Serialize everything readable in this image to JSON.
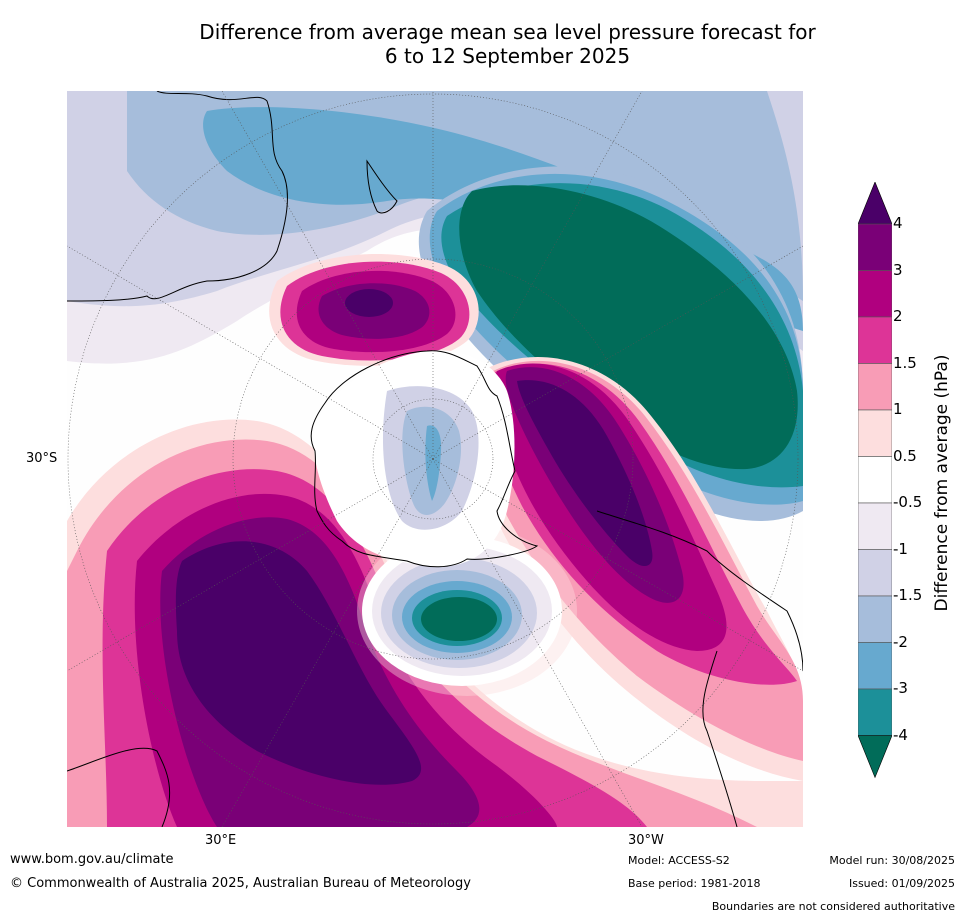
{
  "title": {
    "line1": "Difference from average mean sea level pressure forecast for",
    "line2": "6 to 12 September 2025"
  },
  "axis_labels": {
    "lat_left": "30°S",
    "lon_bottom_left": "30°E",
    "lon_bottom_right": "30°W"
  },
  "colorbar": {
    "title": "Difference from average (hPa)",
    "ticks": [
      "4",
      "3",
      "2",
      "1.5",
      "1",
      "0.5",
      "-0.5",
      "-1",
      "-1.5",
      "-2",
      "-3",
      "-4"
    ],
    "bins": [
      {
        "label": "above 4",
        "color": "#4a0068"
      },
      {
        "label": "3 to 4",
        "color": "#7a0077"
      },
      {
        "label": "2 to 3",
        "color": "#b0007f"
      },
      {
        "label": "1.5 to 2",
        "color": "#dd3497"
      },
      {
        "label": "1 to 1.5",
        "color": "#f89cb6"
      },
      {
        "label": "0.5 to 1",
        "color": "#fddede"
      },
      {
        "label": "-0.5 to 0.5",
        "color": "#ffffff"
      },
      {
        "label": "-1 to -0.5",
        "color": "#efe9f2"
      },
      {
        "label": "-1.5 to -1",
        "color": "#d0d1e6"
      },
      {
        "label": "-2 to -1.5",
        "color": "#a6bddb"
      },
      {
        "label": "-3 to -2",
        "color": "#67a9cf"
      },
      {
        "label": "-4 to -3",
        "color": "#1c9099"
      },
      {
        "label": "below -4",
        "color": "#016c59"
      }
    ]
  },
  "footer": {
    "url": "www.bom.gov.au/climate",
    "copyright": "© Commonwealth of Australia 2025, Australian Bureau of Meteorology",
    "model": "Model: ACCESS-S2",
    "base_period": "Base period: 1981-2018",
    "model_run": "Model run: 30/08/2025",
    "issued": "Issued: 01/09/2025",
    "disclaimer": "Boundaries are not considered authoritative"
  },
  "colors": {
    "land_outline": "#000000",
    "grid": "#555555"
  }
}
